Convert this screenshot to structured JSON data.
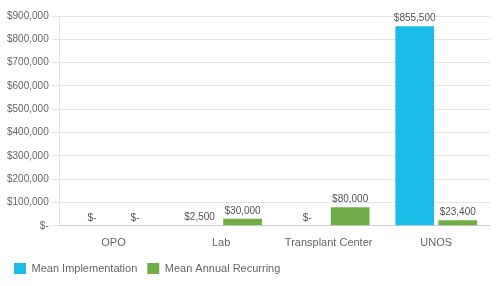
{
  "chart_data": {
    "type": "bar",
    "categories": [
      "OPO",
      "Lab",
      "Transplant Center",
      "UNOS"
    ],
    "series": [
      {
        "name": "Mean Implementation",
        "color": "#1BBDE8",
        "values": [
          0,
          2500,
          0,
          855500
        ],
        "value_labels": [
          "$-",
          "$2,500",
          "$-",
          "$855,500"
        ]
      },
      {
        "name": "Mean Annual Recurring",
        "color": "#70AD47",
        "values": [
          0,
          30000,
          80000,
          23400
        ],
        "value_labels": [
          "$-",
          "$30,000",
          "$80,000",
          "$23,400"
        ]
      }
    ],
    "ylim": [
      0,
      900000
    ],
    "yticks": [
      {
        "value": 0,
        "label": "$-"
      },
      {
        "value": 100000,
        "label": "$100,000"
      },
      {
        "value": 200000,
        "label": "$200,000"
      },
      {
        "value": 300000,
        "label": "$300,000"
      },
      {
        "value": 400000,
        "label": "$400,000"
      },
      {
        "value": 500000,
        "label": "$500,000"
      },
      {
        "value": 600000,
        "label": "$600,000"
      },
      {
        "value": 700000,
        "label": "$700,000"
      },
      {
        "value": 800000,
        "label": "$800,000"
      },
      {
        "value": 900000,
        "label": "$900,000"
      }
    ],
    "grid": true,
    "legend": "bottom left",
    "data_labels": true
  }
}
